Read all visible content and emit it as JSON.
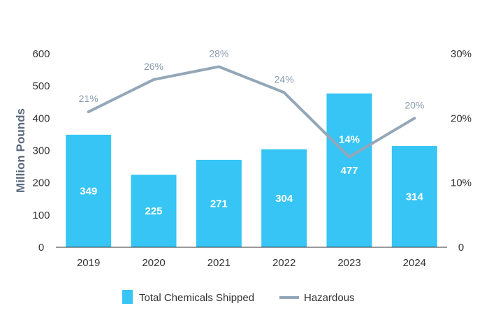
{
  "chart_data": {
    "type": "bar",
    "categories": [
      "2019",
      "2020",
      "2021",
      "2022",
      "2023",
      "2024"
    ],
    "series": [
      {
        "name": "Total Chemicals Shipped",
        "type": "bar",
        "axis": "left",
        "values": [
          349,
          225,
          271,
          304,
          477,
          314
        ],
        "labels": [
          "349",
          "225",
          "271",
          "304",
          "477",
          "314"
        ],
        "color": "#36c5f4"
      },
      {
        "name": "Hazardous",
        "type": "line",
        "axis": "right",
        "values": [
          21,
          26,
          28,
          24,
          14,
          20
        ],
        "labels": [
          "21%",
          "26%",
          "28%",
          "24%",
          "14%",
          "20%"
        ],
        "color": "#93a7b8"
      }
    ],
    "ylabel": "Million Pounds",
    "ylim": [
      0,
      600
    ],
    "yticks": [
      "0",
      "100",
      "200",
      "300",
      "400",
      "500",
      "600"
    ],
    "y2lim": [
      0,
      30
    ],
    "y2ticks": [
      "0",
      "10%",
      "20%",
      "30%"
    ],
    "legend_position": "bottom",
    "grid": false
  }
}
